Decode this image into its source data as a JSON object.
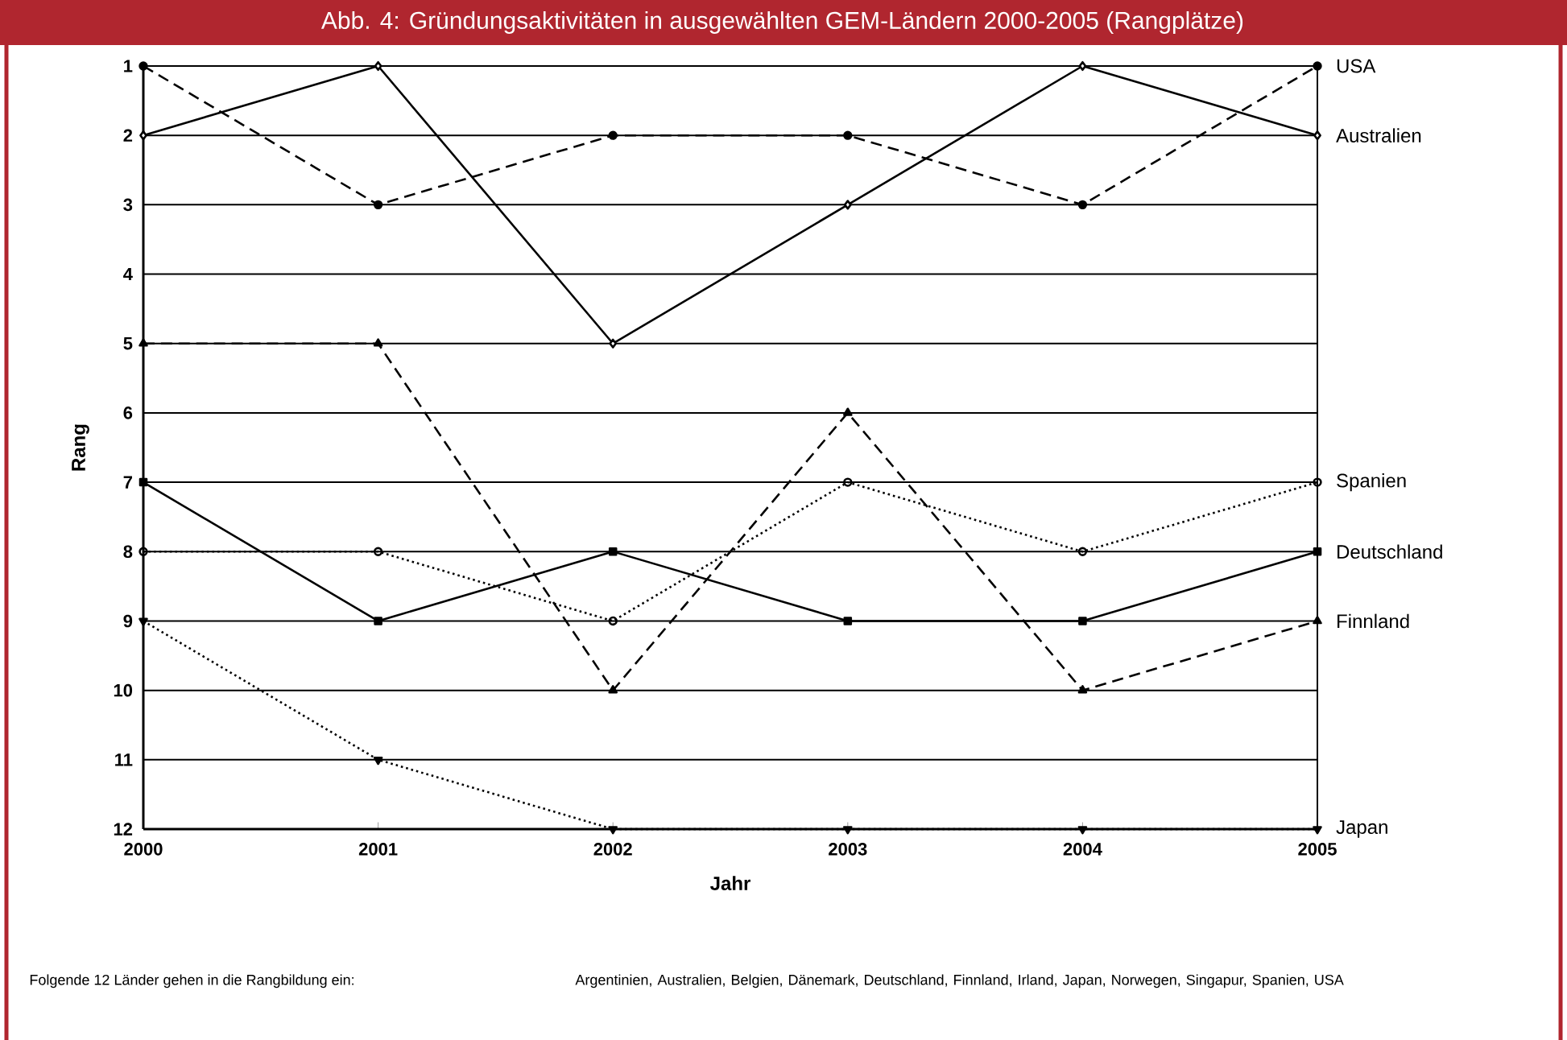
{
  "chart_data": {
    "type": "line",
    "title": "Abb. 4: Gründungsaktivitäten in ausgewählten GEM-Ländern 2000-2005 (Rangplätze)",
    "xlabel": "Jahr",
    "ylabel": "Rang",
    "x": [
      2000,
      2001,
      2002,
      2003,
      2004,
      2005
    ],
    "xlim": [
      2000,
      2005
    ],
    "xticks": [
      2000,
      2001,
      2002,
      2003,
      2004,
      2005
    ],
    "ylim": [
      12,
      1
    ],
    "yticks": [
      1,
      2,
      3,
      4,
      5,
      6,
      7,
      8,
      9,
      10,
      11,
      12
    ],
    "grid": "y",
    "legend": false,
    "series": [
      {
        "name": "USA",
        "color": "#000000",
        "values": [
          1,
          3,
          2,
          2,
          3,
          1
        ],
        "marker": "circle",
        "line_style": "dashed"
      },
      {
        "name": "Australien",
        "color": "#000000",
        "values": [
          2,
          1,
          5,
          3,
          1,
          2
        ],
        "marker": "diamond_open",
        "line_style": "solid"
      },
      {
        "name": "Spanien",
        "color": "#000000",
        "values": [
          8,
          8,
          9,
          7,
          8,
          7
        ],
        "marker": "circle_open",
        "line_style": "dotted"
      },
      {
        "name": "Deutschland",
        "color": "#000000",
        "values": [
          7,
          9,
          8,
          9,
          9,
          8
        ],
        "marker": "square",
        "line_style": "solid"
      },
      {
        "name": "Finnland",
        "color": "#000000",
        "values": [
          5,
          5,
          10,
          6,
          10,
          9
        ],
        "marker": "triangle",
        "line_style": "dashed"
      },
      {
        "name": "Japan",
        "color": "#000000",
        "values": [
          9,
          11,
          12,
          12,
          12,
          12
        ],
        "marker": "triangle_down",
        "line_style": "dotted"
      }
    ],
    "annotations": [
      "Folgende 12 Länder gehen in die Rangbildung ein:",
      "Argentinien, Australien, Belgien, Dänemark, Deutschland, Finnland, Irland, Japan, Norwegen, Singapur, Spanien, USA"
    ]
  }
}
